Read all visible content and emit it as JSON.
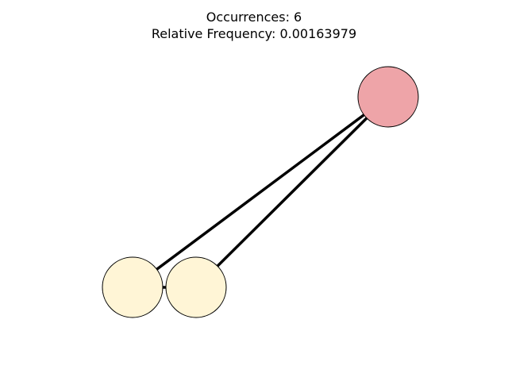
{
  "title": {
    "line1": "Occurrences: 6",
    "line2": "Relative Frequency: 0.00163979"
  },
  "graph": {
    "nodes": [
      {
        "id": "n1",
        "name": "node-left",
        "color": "#fff5d6"
      },
      {
        "id": "n2",
        "name": "node-middle",
        "color": "#fff5d6"
      },
      {
        "id": "n3",
        "name": "node-top-right",
        "color": "#eea4a8"
      }
    ],
    "edges": [
      {
        "from": "n1",
        "to": "n2"
      },
      {
        "from": "n1",
        "to": "n3"
      },
      {
        "from": "n2",
        "to": "n3"
      }
    ],
    "node_stroke": "#000000",
    "edge_color": "#000000"
  }
}
